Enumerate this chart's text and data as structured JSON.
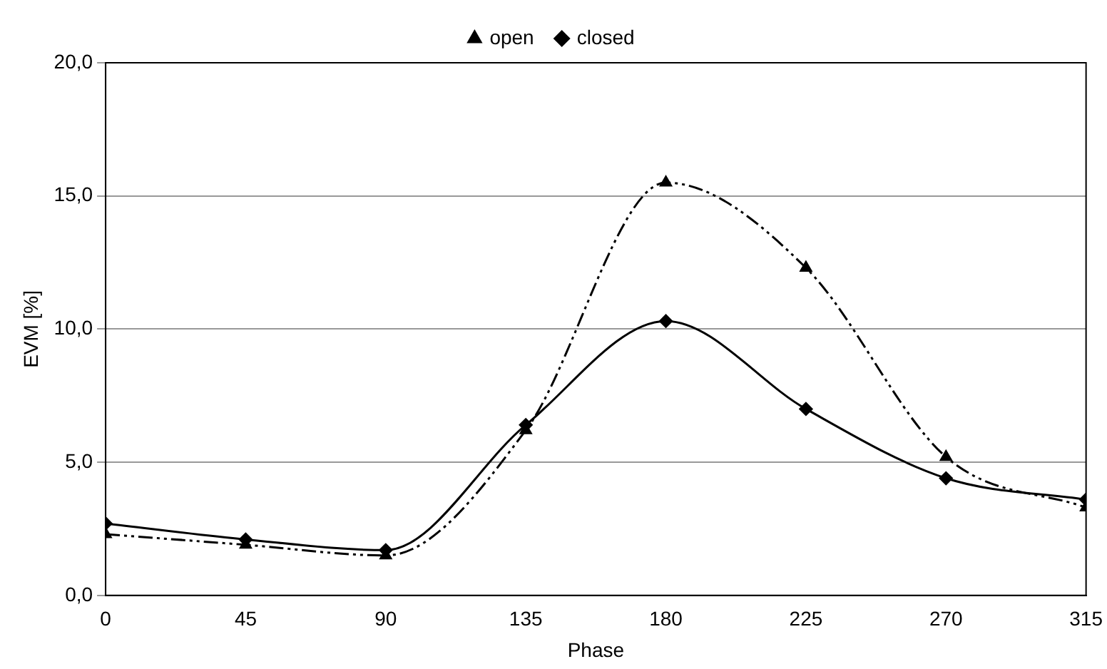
{
  "chart_data": {
    "type": "line",
    "xlabel": "Phase",
    "ylabel": "EVM [%]",
    "x": [
      0,
      45,
      90,
      135,
      180,
      225,
      270,
      315
    ],
    "series": [
      {
        "name": "open",
        "color": "#000000",
        "marker": "triangle",
        "line_style": "dashed",
        "values": [
          2.3,
          1.9,
          1.5,
          6.2,
          15.5,
          12.3,
          5.2,
          3.3
        ]
      },
      {
        "name": "closed",
        "color": "#000000",
        "marker": "diamond",
        "line_style": "solid",
        "values": [
          2.7,
          2.1,
          1.7,
          6.4,
          10.3,
          7.0,
          4.4,
          3.6
        ]
      }
    ],
    "xlim": [
      0,
      315
    ],
    "xticks": [
      0,
      45,
      90,
      135,
      180,
      225,
      270,
      315
    ],
    "ylim": [
      0,
      20
    ],
    "yticks": [
      {
        "value": 0,
        "label": "0,0"
      },
      {
        "value": 5,
        "label": "5,0"
      },
      {
        "value": 10,
        "label": "10,0"
      },
      {
        "value": 15,
        "label": "15,0"
      },
      {
        "value": 20,
        "label": "20,0"
      }
    ],
    "grid": "y",
    "legend": "top"
  }
}
